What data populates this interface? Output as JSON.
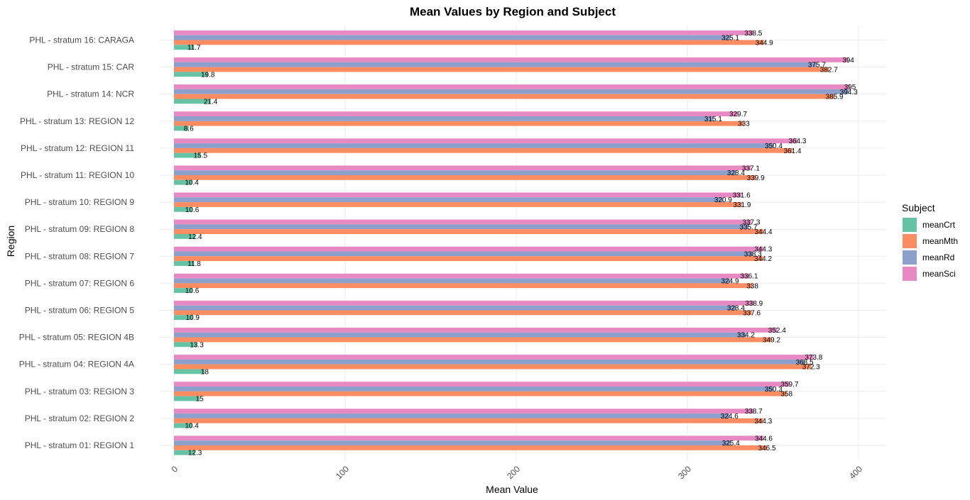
{
  "chart_data": {
    "type": "bar",
    "orientation": "horizontal",
    "title": "Mean Values by Region and Subject",
    "xlabel": "Mean Value",
    "ylabel": "Region",
    "xlim": [
      0,
      400
    ],
    "x_ticks": [
      0,
      100,
      200,
      300,
      400
    ],
    "grid": true,
    "legend_title": "Subject",
    "legend_position": "right",
    "categories": [
      "PHL - stratum 01: REGION 1",
      "PHL - stratum 02: REGION 2",
      "PHL - stratum 03: REGION 3",
      "PHL - stratum 04: REGION 4A",
      "PHL - stratum 05: REGION 4B",
      "PHL - stratum 06: REGION 5",
      "PHL - stratum 07: REGION 6",
      "PHL - stratum 08: REGION 7",
      "PHL - stratum 09: REGION 8",
      "PHL - stratum 10: REGION 9",
      "PHL - stratum 11: REGION 10",
      "PHL - stratum 12: REGION 11",
      "PHL - stratum 13: REGION 12",
      "PHL - stratum 14: NCR",
      "PHL - stratum 15: CAR",
      "PHL - stratum 16: CARAGA"
    ],
    "series": [
      {
        "name": "meanCrt",
        "color": "#66c2a5",
        "values": [
          12.3,
          10.4,
          15,
          18,
          13.3,
          10.9,
          10.6,
          11.8,
          12.4,
          10.6,
          10.4,
          15.5,
          8.6,
          21.4,
          19.8,
          11.7
        ]
      },
      {
        "name": "meanMth",
        "color": "#fc8d62",
        "values": [
          346.5,
          344.3,
          358,
          372.3,
          349.2,
          337.6,
          338,
          344.2,
          344.4,
          331.9,
          339.9,
          361.4,
          333,
          385.9,
          382.7,
          344.9
        ]
      },
      {
        "name": "meanRd",
        "color": "#8da0cb",
        "values": [
          325.4,
          324.6,
          350.3,
          368.5,
          334.2,
          328.4,
          324.9,
          338.3,
          335.7,
          320.9,
          328.4,
          350.4,
          315.1,
          394.3,
          375.7,
          325.1
        ]
      },
      {
        "name": "meanSci",
        "color": "#e78ac3",
        "values": [
          344.6,
          338.7,
          359.7,
          373.8,
          352.4,
          338.9,
          336.1,
          344.3,
          337.3,
          331.6,
          337.1,
          364.3,
          329.7,
          395,
          394,
          338.5
        ]
      }
    ]
  }
}
